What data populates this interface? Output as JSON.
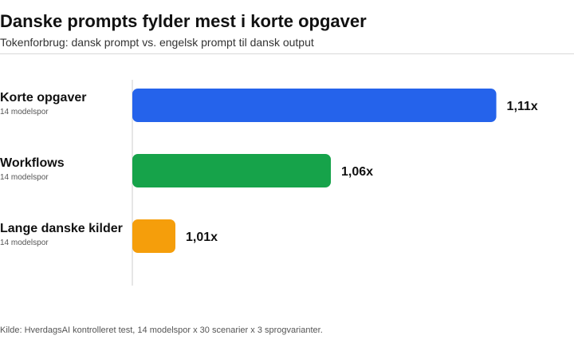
{
  "header": {
    "title": "Danske prompts fylder mest i korte opgaver",
    "subtitle": "Tokenforbrug: dansk prompt vs. engelsk prompt til dansk output"
  },
  "source": "Kilde: HverdagsAI kontrolleret test, 14 modelspor x 30 scenarier x 3 sprogvarianter.",
  "chart_data": {
    "type": "bar",
    "orientation": "horizontal",
    "title": "Danske prompts fylder mest i korte opgaver",
    "subtitle": "Tokenforbrug: dansk prompt vs. engelsk prompt til dansk output",
    "categories": [
      "Korte opgaver",
      "Workflows",
      "Lange danske kilder"
    ],
    "sublabels": [
      "14 modelspor",
      "14 modelspor",
      "14 modelspor"
    ],
    "values": [
      1.11,
      1.06,
      1.01
    ],
    "value_labels": [
      "1,11x",
      "1,06x",
      "1,01x"
    ],
    "colors": [
      "#2563eb",
      "#16a34a",
      "#f59e0b"
    ],
    "xlim": [
      1.0,
      1.113
    ],
    "grid": false,
    "legend": "none"
  }
}
